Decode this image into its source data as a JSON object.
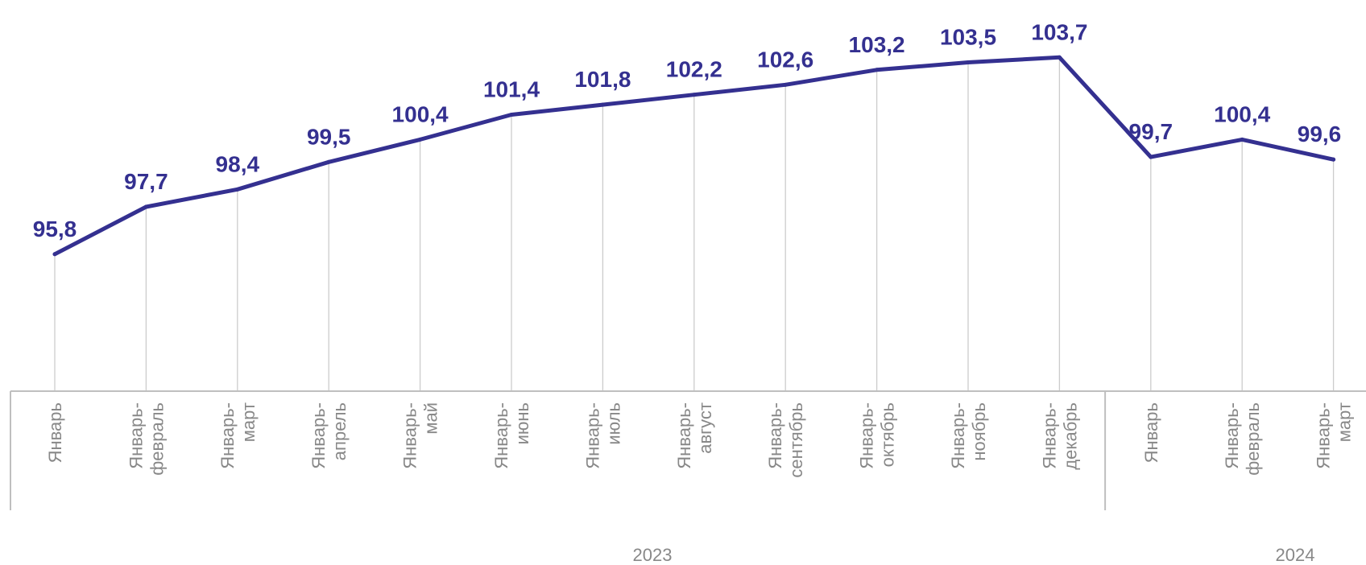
{
  "chart_data": {
    "type": "line",
    "categories": [
      [
        "Январь"
      ],
      [
        "Январь-",
        "февраль"
      ],
      [
        "Январь-",
        "март"
      ],
      [
        "Январь-",
        "апрель"
      ],
      [
        "Январь-",
        "май"
      ],
      [
        "Январь-",
        "июнь"
      ],
      [
        "Январь-",
        "июль"
      ],
      [
        "Январь-",
        "август"
      ],
      [
        "Январь-",
        "сентябрь"
      ],
      [
        "Январь-",
        "октябрь"
      ],
      [
        "Январь-",
        "ноябрь"
      ],
      [
        "Январь-",
        "декабрь"
      ],
      [
        "Январь"
      ],
      [
        "Январь-",
        "февраль"
      ],
      [
        "Январь-",
        "март"
      ]
    ],
    "groups": [
      {
        "label": "2023",
        "count": 12
      },
      {
        "label": "2024",
        "count": 3
      }
    ],
    "series": [
      {
        "values": [
          95.8,
          97.7,
          98.4,
          99.5,
          100.4,
          101.4,
          101.8,
          102.2,
          102.6,
          103.2,
          103.5,
          103.7,
          99.7,
          100.4,
          99.6
        ],
        "labels": [
          "95,8",
          "97,7",
          "98,4",
          "99,5",
          "100,4",
          "101,4",
          "101,8",
          "102,2",
          "102,6",
          "103,2",
          "103,5",
          "103,7",
          "99,7",
          "100,4",
          "99,6"
        ]
      }
    ],
    "ylim": [
      90.3,
      104
    ],
    "grid": "vertical drop lines",
    "legend": "none",
    "colors": {
      "line": "#343090",
      "labels": "#343090",
      "axis": "#bfbfbf",
      "text": "#888888"
    }
  }
}
